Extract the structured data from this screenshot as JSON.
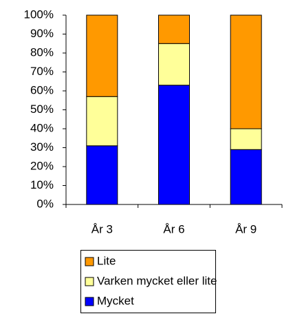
{
  "chart_data": {
    "type": "stacked_bar",
    "categories": [
      "År 3",
      "År 6",
      "År 9"
    ],
    "series": [
      {
        "name": "Mycket",
        "color": "#0000ff",
        "values": [
          31,
          63,
          29
        ]
      },
      {
        "name": "Varken mycket eller lite",
        "color": "#ffff99",
        "values": [
          26,
          22,
          11
        ]
      },
      {
        "name": "Lite",
        "color": "#ff9900",
        "values": [
          43,
          15,
          60
        ]
      }
    ],
    "ylim": [
      0,
      100
    ],
    "yticks": [
      {
        "value": 0,
        "label": "0%"
      },
      {
        "value": 10,
        "label": "10%"
      },
      {
        "value": 20,
        "label": "20%"
      },
      {
        "value": 30,
        "label": "30%"
      },
      {
        "value": 40,
        "label": "40%"
      },
      {
        "value": 50,
        "label": "50%"
      },
      {
        "value": 60,
        "label": "60%"
      },
      {
        "value": 70,
        "label": "70%"
      },
      {
        "value": 80,
        "label": "80%"
      },
      {
        "value": 90,
        "label": "90%"
      },
      {
        "value": 100,
        "label": "100%"
      }
    ],
    "grid": false,
    "legend": "bottom"
  }
}
